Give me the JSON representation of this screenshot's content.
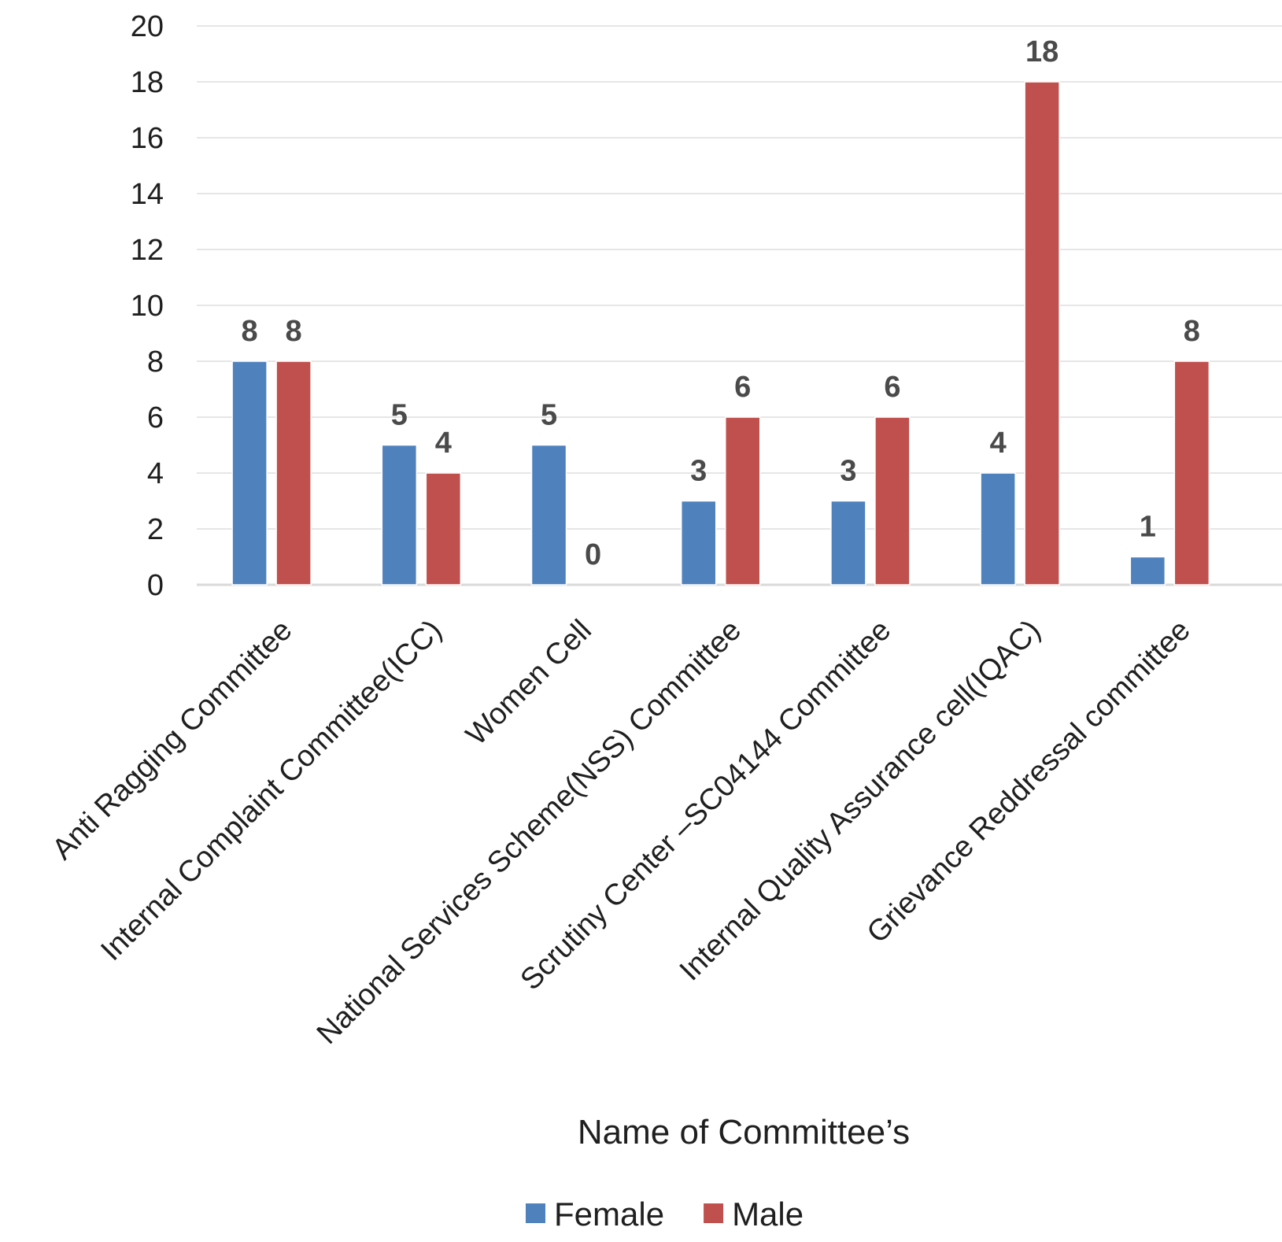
{
  "chart_data": {
    "type": "bar",
    "categories": [
      "Anti Ragging Committee",
      "Internal Complaint Committee(ICC)",
      "Women Cell",
      "National Services Scheme(NSS) Committee",
      "Scrutiny Center –SC04144 Committee",
      "Internal Quality Assurance cell(IQAC)",
      "Grievance Reddressal committee"
    ],
    "series": [
      {
        "name": "Female",
        "color": "#4f81bd",
        "values": [
          8,
          5,
          5,
          3,
          3,
          4,
          1
        ]
      },
      {
        "name": "Male",
        "color": "#c0504d",
        "values": [
          8,
          4,
          0,
          6,
          6,
          18,
          8
        ]
      }
    ],
    "title": "",
    "xlabel": "Name of Committee’s",
    "ylabel": "",
    "ylim": [
      0,
      20
    ],
    "yticks": [
      0,
      2,
      4,
      6,
      8,
      10,
      12,
      14,
      16,
      18,
      20
    ],
    "grid": true,
    "legend_position": "bottom",
    "data_labels": true
  }
}
